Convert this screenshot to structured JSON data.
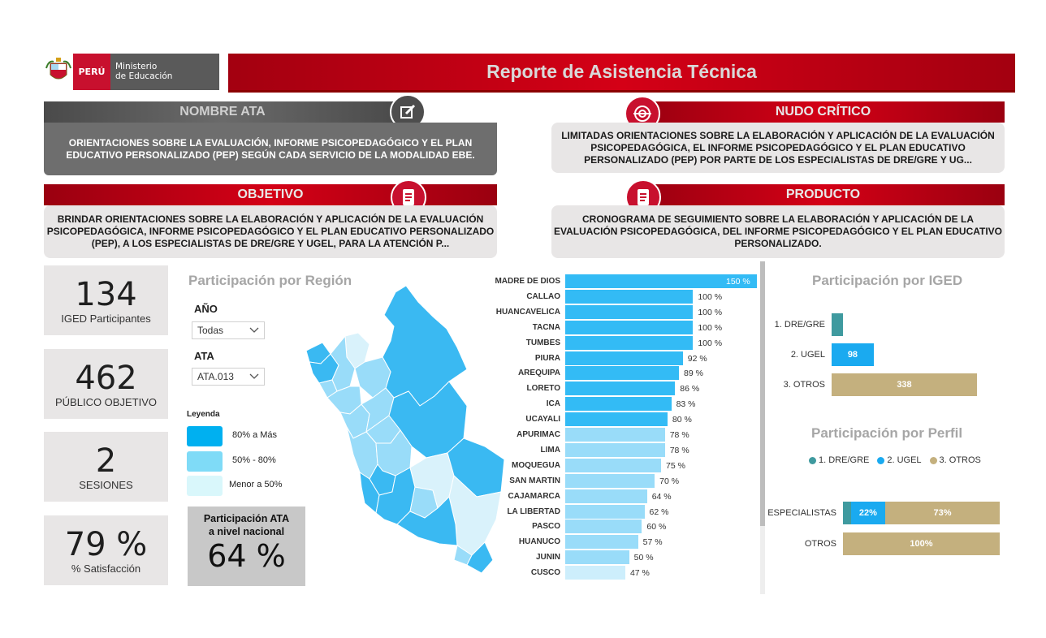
{
  "header": {
    "brand_country": "PERÚ",
    "brand_ministry_line1": "Ministerio",
    "brand_ministry_line2": "de Educación",
    "title": "Reporte de Asistencia Técnica"
  },
  "nombre_ata": {
    "heading": "NOMBRE ATA",
    "text": "ORIENTACIONES SOBRE LA EVALUACIÓN, INFORME PSICOPEDAGÓGICO Y EL PLAN EDUCATIVO PERSONALIZADO (PEP) SEGÚN CADA SERVICIO DE LA MODALIDAD EBE."
  },
  "nudo_critico": {
    "heading": "NUDO CRÍTICO",
    "text": "LIMITADAS ORIENTACIONES SOBRE LA ELABORACIÓN Y APLICACIÓN DE LA EVALUACIÓN PSICOPEDAGÓGICA, EL INFORME PSICOPEDAGÓGICO Y EL PLAN EDUCATIVO PERSONALIZADO (PEP) POR PARTE DE LOS ESPECIALISTAS DE DRE/GRE Y UG..."
  },
  "objetivo": {
    "heading": "OBJETIVO",
    "text": "BRINDAR ORIENTACIONES SOBRE LA ELABORACIÓN Y APLICACIÓN DE LA EVALUACIÓN PSICOPEDAGÓGICA, INFORME PSICOPEDAGÓGICO Y EL PLAN EDUCATIVO PERSONALIZADO (PEP), A LOS ESPECIALISTAS DE DRE/GRE Y UGEL, PARA LA ATENCIÓN P..."
  },
  "producto": {
    "heading": "PRODUCTO",
    "text": "CRONOGRAMA DE SEGUIMIENTO SOBRE LA ELABORACIÓN Y APLICACIÓN DE LA EVALUACIÓN PSICOPEDAGÓGICA, DEL INFORME PSICOPEDAGÓGICO Y EL PLAN EDUCATIVO PERSONALIZADO."
  },
  "kpis": [
    {
      "value": "134",
      "label": "IGED Participantes"
    },
    {
      "value": "462",
      "label": "PÚBLICO OBJETIVO"
    },
    {
      "value": "2",
      "label": "SESIONES"
    },
    {
      "value": "79 %",
      "label": "% Satisfacción"
    }
  ],
  "region_panel": {
    "title": "Participación por Región",
    "year_label": "AÑO",
    "year_value": "Todas",
    "ata_label": "ATA",
    "ata_value": "ATA.013",
    "legend_title": "Leyenda",
    "legend": [
      {
        "label": "80% a Más",
        "color": "#00b0f0"
      },
      {
        "label": "50% - 80%",
        "color": "#7fdbf7"
      },
      {
        "label": "Menor  a 50%",
        "color": "#d9f7fb"
      }
    ],
    "national_label_line1": "Participación ATA",
    "national_label_line2": "a nivel nacional",
    "national_value": "64 %"
  },
  "chart_data": [
    {
      "type": "bar",
      "orientation": "horizontal",
      "categories": [
        "MADRE DE DIOS",
        "CALLAO",
        "HUANCAVELICA",
        "TACNA",
        "TUMBES",
        "PIURA",
        "AREQUIPA",
        "LORETO",
        "ICA",
        "UCAYALI",
        "APURIMAC",
        "LIMA",
        "MOQUEGUA",
        "SAN MARTIN",
        "CAJAMARCA",
        "LA LIBERTAD",
        "PASCO",
        "HUANUCO",
        "JUNIN",
        "CUSCO"
      ],
      "values": [
        150,
        100,
        100,
        100,
        100,
        92,
        89,
        86,
        83,
        80,
        78,
        78,
        75,
        70,
        64,
        62,
        60,
        57,
        50,
        47
      ],
      "value_labels": [
        "150 %",
        "100 %",
        "100 %",
        "100 %",
        "100 %",
        "92 %",
        "89 %",
        "86 %",
        "83 %",
        "80 %",
        "78 %",
        "78 %",
        "75 %",
        "70 %",
        "64 %",
        "62 %",
        "60 %",
        "57 %",
        "50 %",
        "47 %"
      ],
      "colors": {
        "high": "#33bbf5",
        "mid": "#99dcf9",
        "low": "#cdeefc"
      }
    },
    {
      "type": "bar",
      "orientation": "horizontal",
      "title": "Participación por IGED",
      "categories": [
        "1. DRE/GRE",
        "2. UGEL",
        "3. OTROS"
      ],
      "values": [
        5,
        98,
        338
      ],
      "value_labels": [
        "",
        "98",
        "338"
      ],
      "colors": [
        "#3f9a9f",
        "#1aaaf0",
        "#c4b07e"
      ]
    },
    {
      "type": "bar",
      "stacked": true,
      "orientation": "horizontal",
      "title": "Participación por Perfil",
      "categories": [
        "ESPECIALISTAS",
        "OTROS"
      ],
      "series": [
        {
          "name": "1. DRE/GRE",
          "color": "#3f9a9f",
          "values": [
            5,
            0
          ],
          "labels": [
            "",
            ""
          ]
        },
        {
          "name": "2. UGEL",
          "color": "#1aaaf0",
          "values": [
            22,
            0
          ],
          "labels": [
            "22%",
            ""
          ]
        },
        {
          "name": "3. OTROS",
          "color": "#c4b07e",
          "values": [
            73,
            100
          ],
          "labels": [
            "73%",
            "100%"
          ]
        }
      ]
    }
  ]
}
